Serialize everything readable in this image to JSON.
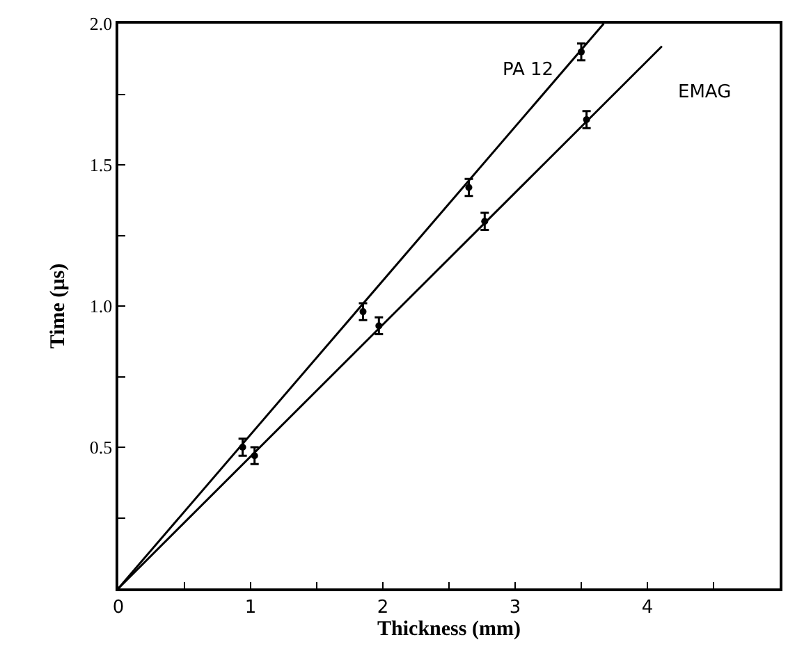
{
  "chart_data": {
    "type": "scatter",
    "xlabel": "Thickness (mm)",
    "ylabel": "Time (µs)",
    "xlim": [
      0,
      5
    ],
    "ylim": [
      0,
      2
    ],
    "xticks": [
      0,
      {
        "value": 0.5,
        "label": null
      },
      1,
      {
        "value": 1.5,
        "label": null
      },
      2,
      {
        "value": 2.5,
        "label": null
      },
      3,
      {
        "value": 3.5,
        "label": null
      },
      4,
      {
        "value": 4.5,
        "label": null
      }
    ],
    "yticks": [
      {
        "value": 0.25,
        "label": null
      },
      {
        "value": 0.5,
        "label": "0.5"
      },
      {
        "value": 0.75,
        "label": null
      },
      {
        "value": 1,
        "label": "1.0"
      },
      {
        "value": 1.25,
        "label": null
      },
      {
        "value": 1.5,
        "label": "1.5"
      },
      {
        "value": 1.75,
        "label": null
      },
      {
        "value": 2,
        "label": "2.0"
      }
    ],
    "grid": false,
    "marker": "circle",
    "line_style": "solid",
    "series": [
      {
        "color": "#000000",
        "x": [
          0.94,
          1.85,
          2.65,
          3.5
        ],
        "values": [
          0.5,
          0.98,
          1.42,
          1.9
        ],
        "errors": [
          0.03,
          0.03,
          0.03,
          0.03
        ]
      },
      {
        "color": "#000000",
        "x": [
          1.03,
          1.97,
          2.77,
          3.54
        ],
        "values": [
          0.47,
          0.93,
          1.3,
          1.66
        ],
        "errors": [
          0.03,
          0.03,
          0.03,
          0.03
        ]
      },
      {
        "type": "line",
        "marker": "none",
        "name": "PA 12",
        "color": "#000000",
        "x": [
          0,
          3.67
        ],
        "values": [
          0,
          2.0
        ]
      },
      {
        "type": "line",
        "marker": "none",
        "name": "EMAG",
        "color": "#000000",
        "x": [
          0,
          4.11
        ],
        "values": [
          0,
          1.92
        ]
      }
    ]
  }
}
